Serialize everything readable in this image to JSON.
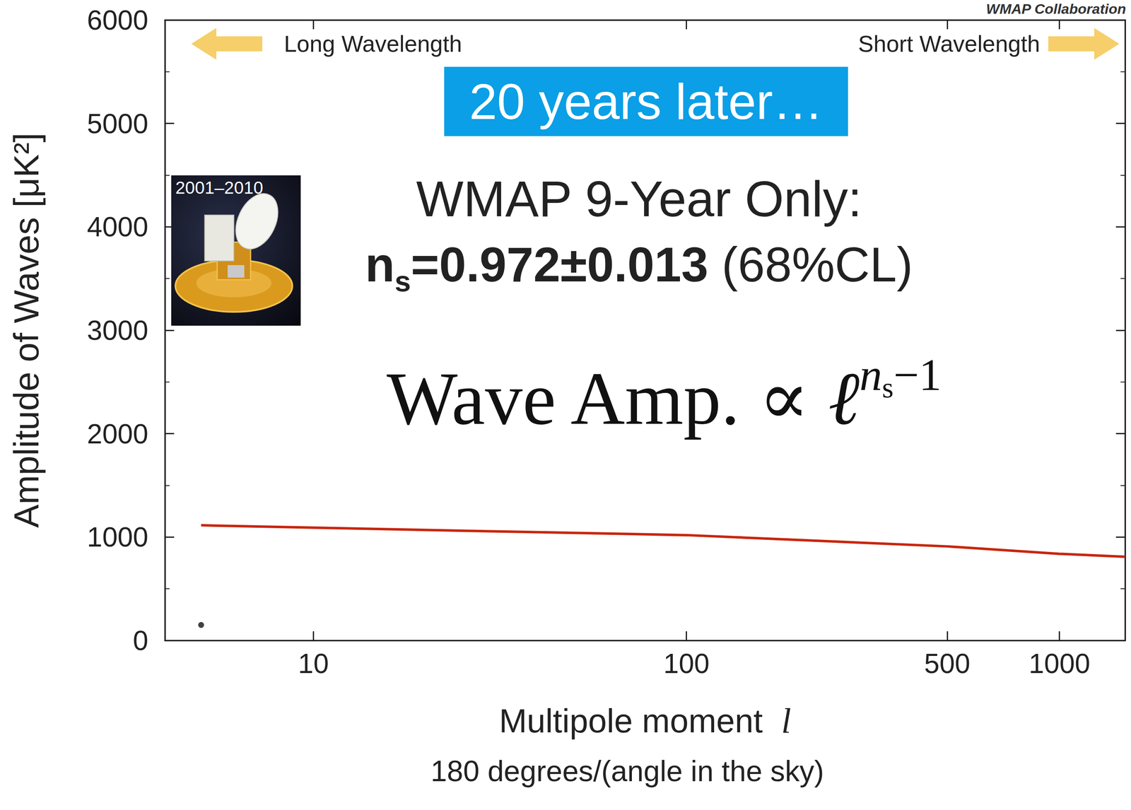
{
  "chart_data": {
    "type": "line",
    "header": "WMAP Collaboration",
    "x_label": "Multipole moment l",
    "x_sublabel": "180 degrees/(angle in the sky)",
    "y_label": "Amplitude of Waves [μK²]",
    "xlim": [
      4,
      1500
    ],
    "xticks": [
      10,
      100,
      500,
      1000
    ],
    "ylim": [
      0,
      6000
    ],
    "yticks": [
      0,
      1000,
      2000,
      3000,
      4000,
      5000,
      6000
    ],
    "log": "x",
    "grid": false,
    "annotations": {
      "left_arrow": "Long Wavelength",
      "right_arrow": "Short Wavelength",
      "banner": "20 years later…",
      "image_caption": "2001–2010",
      "result_title": "WMAP 9-Year Only:",
      "result": {
        "symbol": "n",
        "symbol_sub": "s",
        "text": "=0.972±0.013",
        "note": "(68%CL)"
      },
      "formula": {
        "text": "Wave Amp. ∝ ",
        "base": "ℓ",
        "exponent": "n",
        "exponent_sub": "s",
        "exponent_tail": "−1"
      }
    },
    "series": [
      {
        "type": "line",
        "color": "#c8260c",
        "marker": "none",
        "line_style": "solid",
        "x": [
          5,
          10,
          30,
          100,
          200,
          500,
          1000,
          1500
        ],
        "values": [
          1114,
          1091,
          1056,
          1019,
          972,
          910,
          838,
          810
        ]
      },
      {
        "type": "scatter",
        "color": "#111111",
        "marker": "circle",
        "x": [
          5
        ],
        "values": [
          150
        ]
      }
    ]
  }
}
